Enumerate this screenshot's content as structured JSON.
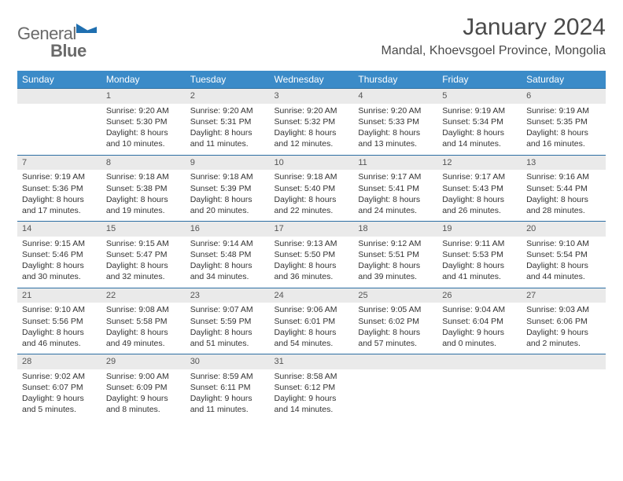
{
  "brand": {
    "name_light": "General",
    "name_bold": "Blue"
  },
  "header": {
    "month": "January 2024",
    "location": "Mandal, Khoevsgoel Province, Mongolia"
  },
  "colors": {
    "header_bg": "#3b8bc8",
    "header_text": "#ffffff",
    "daynum_bg": "#eaeaea",
    "daynum_border": "#2d6fa3",
    "body_text": "#333333",
    "brand_text": "#6a6a6a",
    "brand_mark": "#1f6fb0"
  },
  "typography": {
    "month_fontsize": 30,
    "location_fontsize": 16,
    "dayheader_fontsize": 12,
    "cell_fontsize": 10.5
  },
  "days_of_week": [
    "Sunday",
    "Monday",
    "Tuesday",
    "Wednesday",
    "Thursday",
    "Friday",
    "Saturday"
  ],
  "weeks": [
    [
      null,
      {
        "n": "1",
        "sunrise": "Sunrise: 9:20 AM",
        "sunset": "Sunset: 5:30 PM",
        "daylight": "Daylight: 8 hours and 10 minutes."
      },
      {
        "n": "2",
        "sunrise": "Sunrise: 9:20 AM",
        "sunset": "Sunset: 5:31 PM",
        "daylight": "Daylight: 8 hours and 11 minutes."
      },
      {
        "n": "3",
        "sunrise": "Sunrise: 9:20 AM",
        "sunset": "Sunset: 5:32 PM",
        "daylight": "Daylight: 8 hours and 12 minutes."
      },
      {
        "n": "4",
        "sunrise": "Sunrise: 9:20 AM",
        "sunset": "Sunset: 5:33 PM",
        "daylight": "Daylight: 8 hours and 13 minutes."
      },
      {
        "n": "5",
        "sunrise": "Sunrise: 9:19 AM",
        "sunset": "Sunset: 5:34 PM",
        "daylight": "Daylight: 8 hours and 14 minutes."
      },
      {
        "n": "6",
        "sunrise": "Sunrise: 9:19 AM",
        "sunset": "Sunset: 5:35 PM",
        "daylight": "Daylight: 8 hours and 16 minutes."
      }
    ],
    [
      {
        "n": "7",
        "sunrise": "Sunrise: 9:19 AM",
        "sunset": "Sunset: 5:36 PM",
        "daylight": "Daylight: 8 hours and 17 minutes."
      },
      {
        "n": "8",
        "sunrise": "Sunrise: 9:18 AM",
        "sunset": "Sunset: 5:38 PM",
        "daylight": "Daylight: 8 hours and 19 minutes."
      },
      {
        "n": "9",
        "sunrise": "Sunrise: 9:18 AM",
        "sunset": "Sunset: 5:39 PM",
        "daylight": "Daylight: 8 hours and 20 minutes."
      },
      {
        "n": "10",
        "sunrise": "Sunrise: 9:18 AM",
        "sunset": "Sunset: 5:40 PM",
        "daylight": "Daylight: 8 hours and 22 minutes."
      },
      {
        "n": "11",
        "sunrise": "Sunrise: 9:17 AM",
        "sunset": "Sunset: 5:41 PM",
        "daylight": "Daylight: 8 hours and 24 minutes."
      },
      {
        "n": "12",
        "sunrise": "Sunrise: 9:17 AM",
        "sunset": "Sunset: 5:43 PM",
        "daylight": "Daylight: 8 hours and 26 minutes."
      },
      {
        "n": "13",
        "sunrise": "Sunrise: 9:16 AM",
        "sunset": "Sunset: 5:44 PM",
        "daylight": "Daylight: 8 hours and 28 minutes."
      }
    ],
    [
      {
        "n": "14",
        "sunrise": "Sunrise: 9:15 AM",
        "sunset": "Sunset: 5:46 PM",
        "daylight": "Daylight: 8 hours and 30 minutes."
      },
      {
        "n": "15",
        "sunrise": "Sunrise: 9:15 AM",
        "sunset": "Sunset: 5:47 PM",
        "daylight": "Daylight: 8 hours and 32 minutes."
      },
      {
        "n": "16",
        "sunrise": "Sunrise: 9:14 AM",
        "sunset": "Sunset: 5:48 PM",
        "daylight": "Daylight: 8 hours and 34 minutes."
      },
      {
        "n": "17",
        "sunrise": "Sunrise: 9:13 AM",
        "sunset": "Sunset: 5:50 PM",
        "daylight": "Daylight: 8 hours and 36 minutes."
      },
      {
        "n": "18",
        "sunrise": "Sunrise: 9:12 AM",
        "sunset": "Sunset: 5:51 PM",
        "daylight": "Daylight: 8 hours and 39 minutes."
      },
      {
        "n": "19",
        "sunrise": "Sunrise: 9:11 AM",
        "sunset": "Sunset: 5:53 PM",
        "daylight": "Daylight: 8 hours and 41 minutes."
      },
      {
        "n": "20",
        "sunrise": "Sunrise: 9:10 AM",
        "sunset": "Sunset: 5:54 PM",
        "daylight": "Daylight: 8 hours and 44 minutes."
      }
    ],
    [
      {
        "n": "21",
        "sunrise": "Sunrise: 9:10 AM",
        "sunset": "Sunset: 5:56 PM",
        "daylight": "Daylight: 8 hours and 46 minutes."
      },
      {
        "n": "22",
        "sunrise": "Sunrise: 9:08 AM",
        "sunset": "Sunset: 5:58 PM",
        "daylight": "Daylight: 8 hours and 49 minutes."
      },
      {
        "n": "23",
        "sunrise": "Sunrise: 9:07 AM",
        "sunset": "Sunset: 5:59 PM",
        "daylight": "Daylight: 8 hours and 51 minutes."
      },
      {
        "n": "24",
        "sunrise": "Sunrise: 9:06 AM",
        "sunset": "Sunset: 6:01 PM",
        "daylight": "Daylight: 8 hours and 54 minutes."
      },
      {
        "n": "25",
        "sunrise": "Sunrise: 9:05 AM",
        "sunset": "Sunset: 6:02 PM",
        "daylight": "Daylight: 8 hours and 57 minutes."
      },
      {
        "n": "26",
        "sunrise": "Sunrise: 9:04 AM",
        "sunset": "Sunset: 6:04 PM",
        "daylight": "Daylight: 9 hours and 0 minutes."
      },
      {
        "n": "27",
        "sunrise": "Sunrise: 9:03 AM",
        "sunset": "Sunset: 6:06 PM",
        "daylight": "Daylight: 9 hours and 2 minutes."
      }
    ],
    [
      {
        "n": "28",
        "sunrise": "Sunrise: 9:02 AM",
        "sunset": "Sunset: 6:07 PM",
        "daylight": "Daylight: 9 hours and 5 minutes."
      },
      {
        "n": "29",
        "sunrise": "Sunrise: 9:00 AM",
        "sunset": "Sunset: 6:09 PM",
        "daylight": "Daylight: 9 hours and 8 minutes."
      },
      {
        "n": "30",
        "sunrise": "Sunrise: 8:59 AM",
        "sunset": "Sunset: 6:11 PM",
        "daylight": "Daylight: 9 hours and 11 minutes."
      },
      {
        "n": "31",
        "sunrise": "Sunrise: 8:58 AM",
        "sunset": "Sunset: 6:12 PM",
        "daylight": "Daylight: 9 hours and 14 minutes."
      },
      null,
      null,
      null
    ]
  ]
}
